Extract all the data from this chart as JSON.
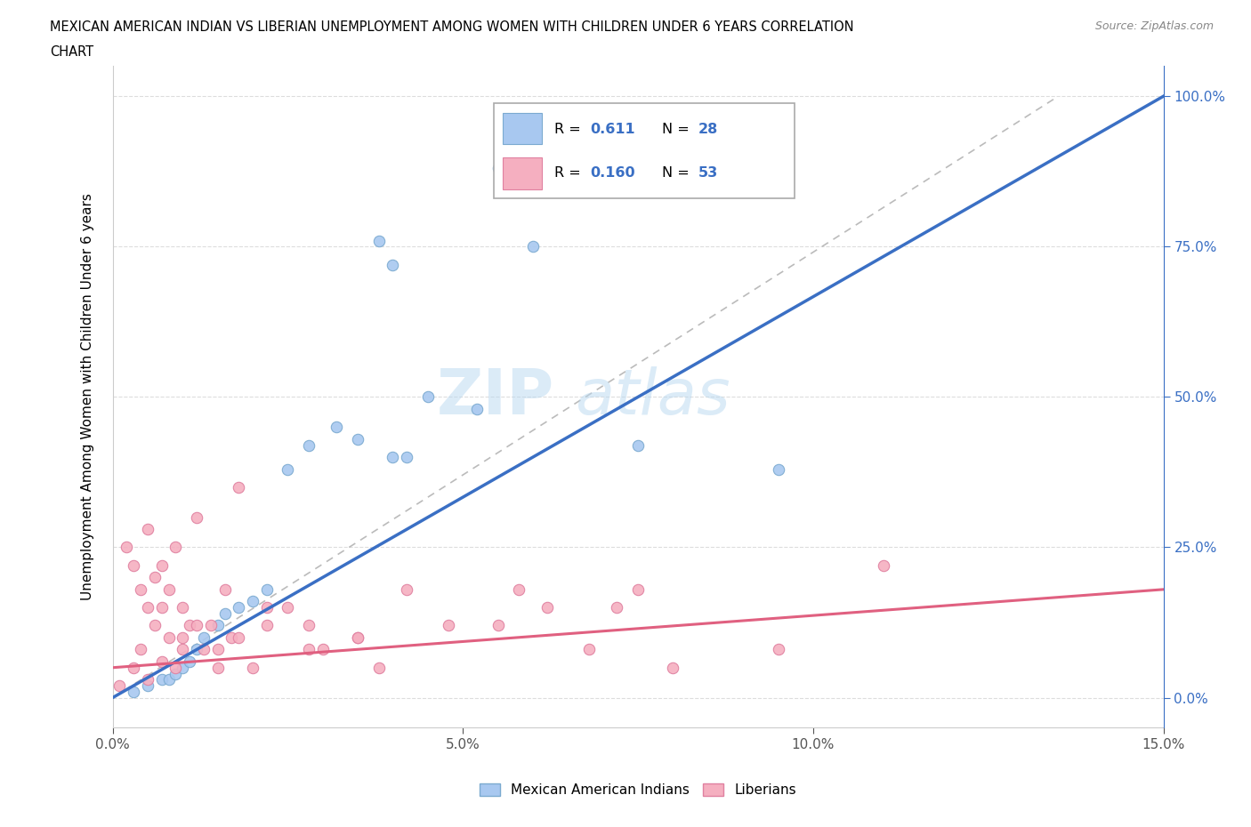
{
  "title_line1": "MEXICAN AMERICAN INDIAN VS LIBERIAN UNEMPLOYMENT AMONG WOMEN WITH CHILDREN UNDER 6 YEARS CORRELATION",
  "title_line2": "CHART",
  "source": "Source: ZipAtlas.com",
  "ylabel": "Unemployment Among Women with Children Under 6 years",
  "xlabel_ticks": [
    "0.0%",
    "5.0%",
    "10.0%",
    "15.0%"
  ],
  "xlabel_vals": [
    0,
    5,
    10,
    15
  ],
  "ylabel_ticks_right": [
    "100.0%",
    "75.0%",
    "50.0%",
    "25.0%",
    "0.0%"
  ],
  "ylabel_vals": [
    0,
    25,
    50,
    75,
    100
  ],
  "xmin": 0,
  "xmax": 15,
  "ymin": -5,
  "ymax": 105,
  "R_blue": "0.611",
  "N_blue": "28",
  "R_pink": "0.160",
  "N_pink": "53",
  "blue_color": "#a8c8f0",
  "blue_edge_color": "#7baad0",
  "blue_line_color": "#3a6fc4",
  "pink_color": "#f5afc0",
  "pink_edge_color": "#e080a0",
  "pink_line_color": "#e06080",
  "ref_line_color": "#bbbbbb",
  "grid_color": "#dddddd",
  "legend_blue_label": "Mexican American Indians",
  "legend_pink_label": "Liberians",
  "watermark_zip": "ZIP",
  "watermark_atlas": "atlas",
  "blue_scatter_x": [
    0.3,
    0.5,
    0.7,
    0.8,
    0.9,
    1.0,
    1.1,
    1.2,
    1.3,
    1.5,
    1.6,
    1.8,
    2.0,
    2.2,
    2.5,
    2.8,
    3.2,
    3.5,
    4.0,
    4.5,
    5.2,
    6.0,
    7.5,
    9.5,
    4.0,
    4.2,
    3.8,
    5.5
  ],
  "blue_scatter_y": [
    1,
    2,
    3,
    3,
    4,
    5,
    6,
    8,
    10,
    12,
    14,
    15,
    16,
    18,
    38,
    42,
    45,
    43,
    40,
    50,
    48,
    75,
    42,
    38,
    72,
    40,
    76,
    88
  ],
  "pink_scatter_x": [
    0.1,
    0.2,
    0.3,
    0.3,
    0.4,
    0.4,
    0.5,
    0.5,
    0.6,
    0.6,
    0.7,
    0.7,
    0.8,
    0.8,
    0.9,
    0.9,
    1.0,
    1.0,
    1.1,
    1.2,
    1.3,
    1.4,
    1.5,
    1.6,
    1.7,
    1.8,
    2.0,
    2.2,
    2.5,
    2.8,
    3.0,
    3.5,
    3.8,
    4.2,
    4.8,
    5.5,
    6.2,
    6.8,
    7.5,
    8.0,
    9.5,
    11.0,
    0.5,
    0.7,
    1.0,
    1.2,
    1.5,
    1.8,
    2.2,
    2.8,
    3.5,
    5.8,
    7.2
  ],
  "pink_scatter_y": [
    2,
    25,
    5,
    22,
    8,
    18,
    3,
    28,
    12,
    20,
    6,
    22,
    10,
    18,
    5,
    25,
    8,
    15,
    12,
    30,
    8,
    12,
    5,
    18,
    10,
    35,
    5,
    15,
    15,
    12,
    8,
    10,
    5,
    18,
    12,
    12,
    15,
    8,
    18,
    5,
    8,
    22,
    15,
    15,
    10,
    12,
    8,
    10,
    12,
    8,
    10,
    18,
    15
  ],
  "blue_trend_x": [
    0,
    15
  ],
  "blue_trend_y": [
    0,
    100
  ],
  "pink_trend_x": [
    0,
    15
  ],
  "pink_trend_y": [
    5,
    18
  ]
}
